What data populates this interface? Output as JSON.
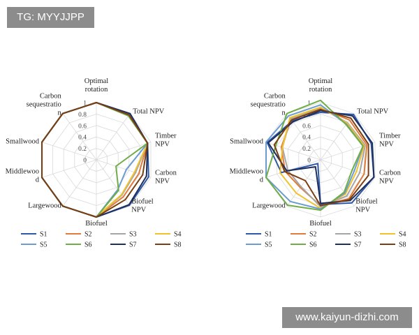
{
  "tags": {
    "top": "TG: MYYJJPP",
    "bottom": "www.kaiyun-dizhi.com"
  },
  "chart_data": [
    {
      "type": "radar",
      "axes": [
        "Optimal\nrotation",
        "Total NPV",
        "Timber\nNPV",
        "Carbon\nNPV",
        "Biofuel\nNPV",
        "Biofuel",
        "Largewood",
        "Middlewoo\nd",
        "Smallwood",
        "Carbon\nsequestratio\nn"
      ],
      "ticks": [
        "0",
        "0.2",
        "0.4",
        "0.6",
        "0.8",
        "1"
      ],
      "rlim": [
        0,
        1
      ],
      "legend_position": "bottom",
      "series": [
        {
          "name": "S1",
          "color": "#2E57A6",
          "values": [
            1.0,
            0.98,
            0.94,
            0.96,
            0.98,
            1.0,
            1.0,
            1.0,
            1.0,
            1.0
          ]
        },
        {
          "name": "S2",
          "color": "#E07B39",
          "values": [
            1.0,
            0.97,
            0.94,
            0.78,
            0.8,
            1.0,
            1.0,
            1.0,
            1.0,
            1.0
          ]
        },
        {
          "name": "S3",
          "color": "#A5A5A5",
          "values": [
            1.0,
            0.97,
            0.94,
            0.72,
            0.76,
            1.0,
            1.0,
            1.0,
            1.0,
            1.0
          ]
        },
        {
          "name": "S4",
          "color": "#F2C12E",
          "values": [
            1.0,
            0.97,
            0.94,
            0.7,
            0.75,
            1.0,
            1.0,
            1.0,
            1.0,
            1.0
          ]
        },
        {
          "name": "S5",
          "color": "#6A9BD1",
          "values": [
            1.0,
            0.96,
            0.94,
            0.55,
            0.64,
            1.0,
            1.0,
            1.0,
            1.0,
            1.0
          ]
        },
        {
          "name": "S6",
          "color": "#70AD47",
          "values": [
            1.0,
            0.95,
            0.94,
            0.36,
            0.66,
            1.0,
            1.0,
            1.0,
            1.0,
            1.0
          ]
        },
        {
          "name": "S7",
          "color": "#1F2F5C",
          "values": [
            1.0,
            1.0,
            0.94,
            0.92,
            0.97,
            1.0,
            1.0,
            1.0,
            1.0,
            1.0
          ]
        },
        {
          "name": "S8",
          "color": "#7A3E13",
          "values": [
            1.0,
            0.97,
            0.94,
            0.85,
            0.86,
            1.0,
            1.0,
            1.0,
            1.0,
            1.0
          ]
        }
      ]
    },
    {
      "type": "radar",
      "axes": [
        "Optimal\nrotation",
        "Total NPV",
        "Timber\nNPV",
        "Carbon\nNPV",
        "Biofuel\nNPV",
        "Biofuel",
        "Largewood",
        "Middlewoo\nd",
        "Smallwood",
        "Carbon\nsequestratio\nn"
      ],
      "ticks": [
        "0",
        "0.2",
        "0.4",
        "0.6",
        "0.8",
        "1"
      ],
      "rlim": [
        0,
        1
      ],
      "legend_position": "bottom",
      "series": [
        {
          "name": "S1",
          "color": "#2E57A6",
          "values": [
            0.83,
            0.98,
            0.93,
            0.98,
            0.93,
            0.78,
            0.08,
            0.72,
            0.98,
            0.84
          ]
        },
        {
          "name": "S2",
          "color": "#E07B39",
          "values": [
            0.9,
            0.86,
            0.85,
            0.8,
            0.84,
            0.8,
            0.6,
            0.65,
            0.72,
            0.87
          ]
        },
        {
          "name": "S3",
          "color": "#A5A5A5",
          "values": [
            0.91,
            0.8,
            0.82,
            0.72,
            0.78,
            0.82,
            0.58,
            0.6,
            0.7,
            0.89
          ]
        },
        {
          "name": "S4",
          "color": "#F2C12E",
          "values": [
            0.92,
            0.79,
            0.8,
            0.66,
            0.74,
            0.85,
            0.72,
            0.74,
            0.7,
            0.91
          ]
        },
        {
          "name": "S5",
          "color": "#6A9BD1",
          "values": [
            0.96,
            0.77,
            0.78,
            0.62,
            0.72,
            0.86,
            0.9,
            1.0,
            1.0,
            0.95
          ]
        },
        {
          "name": "S6",
          "color": "#70AD47",
          "values": [
            1.04,
            0.76,
            0.78,
            0.58,
            0.7,
            0.88,
            0.98,
            1.0,
            0.82,
            1.0
          ]
        },
        {
          "name": "S7",
          "color": "#1F2F5C",
          "values": [
            0.86,
            0.95,
            0.95,
            0.98,
            0.88,
            0.76,
            0.15,
            0.62,
            0.96,
            0.82
          ]
        },
        {
          "name": "S8",
          "color": "#7A3E13",
          "values": [
            0.88,
            0.9,
            0.88,
            0.88,
            0.86,
            0.8,
            0.45,
            0.66,
            0.85,
            0.86
          ]
        }
      ]
    }
  ]
}
